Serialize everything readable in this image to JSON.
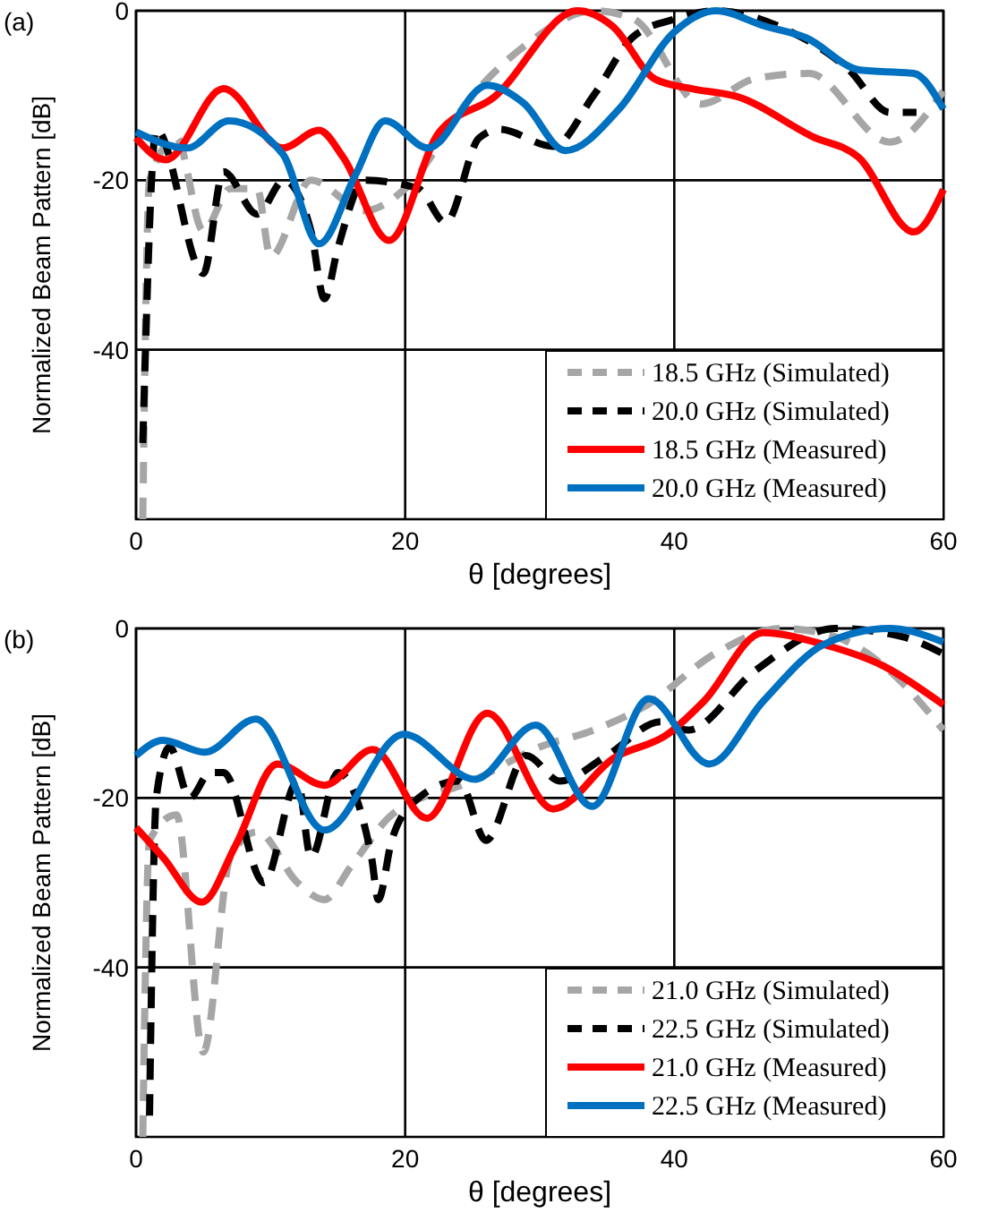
{
  "chart_data": [
    {
      "type": "line",
      "annotations": [
        "(a)"
      ],
      "xlabel": "θ [degrees]",
      "ylabel": "Normalized Beam Pattern [dB]",
      "xlim": [
        0,
        60
      ],
      "ylim": [
        -60,
        0
      ],
      "xticks": [
        0,
        20,
        40,
        60
      ],
      "yticks": [
        0,
        -20,
        -40
      ],
      "grid": true,
      "legend": "bottom right",
      "series": [
        {
          "name": "18.5 GHz (Simulated)",
          "color": "#a6a6a6",
          "line_style": "dashed",
          "x": [
            0.5,
            1,
            3,
            5,
            7,
            9,
            10,
            13,
            17,
            20,
            25,
            29,
            34,
            37,
            42,
            46,
            50,
            56,
            60
          ],
          "values": [
            -60,
            -20,
            -15,
            -26,
            -21,
            -21,
            -29,
            -20,
            -23.6,
            -21,
            -10,
            -4,
            0,
            -1,
            -11,
            -8,
            -7.4,
            -15.5,
            -9.5
          ]
        },
        {
          "name": "20.0 GHz (Simulated)",
          "color": "#000000",
          "line_style": "dashed",
          "x": [
            0.5,
            1.5,
            5,
            6.5,
            9,
            11,
            13,
            14,
            15,
            17,
            21,
            23,
            25.5,
            27,
            31,
            34,
            37,
            40,
            43,
            48,
            53,
            56,
            58
          ],
          "values": [
            -51,
            -14,
            -31,
            -19,
            -24,
            -20,
            -26,
            -34,
            -28,
            -20,
            -21,
            -25,
            -15,
            -14,
            -16,
            -10,
            -3,
            -1,
            0,
            -2,
            -7,
            -12,
            -12
          ]
        },
        {
          "name": "18.5 GHz (Measured)",
          "color": "#ff0000",
          "line_style": "solid",
          "x": [
            0,
            2.2,
            6.5,
            10.9,
            13.6,
            15.4,
            18.8,
            22.5,
            26.6,
            32.8,
            35.4,
            38.6,
            41.3,
            44.8,
            50.2,
            53.7,
            57.8,
            60
          ],
          "values": [
            -15,
            -17.6,
            -9.2,
            -16.2,
            -14.1,
            -17.3,
            -27.1,
            -14.4,
            -10.2,
            0,
            -1.8,
            -8.1,
            -9.2,
            -10.2,
            -14.8,
            -17.3,
            -26.1,
            -21.1
          ]
        },
        {
          "name": "20.0 GHz (Measured)",
          "color": "#0070c0",
          "line_style": "solid",
          "x": [
            0,
            3.8,
            6.9,
            10.9,
            13.6,
            16.3,
            18.5,
            21.7,
            26.1,
            28.8,
            31.9,
            35.9,
            40,
            43.1,
            46.7,
            49.8,
            53.8,
            57.8,
            60
          ],
          "values": [
            -14.3,
            -16.2,
            -13,
            -16.9,
            -27.5,
            -19.4,
            -13,
            -16.2,
            -8.8,
            -10.9,
            -16.5,
            -11.6,
            -2.5,
            0,
            -1.8,
            -3.2,
            -7,
            -7.4,
            -11.6
          ]
        }
      ]
    },
    {
      "type": "line",
      "annotations": [
        "(b)"
      ],
      "xlabel": "θ [degrees]",
      "ylabel": "Normalized Beam Pattern [dB]",
      "xlim": [
        0,
        60
      ],
      "ylim": [
        -60,
        0
      ],
      "xticks": [
        0,
        20,
        40,
        60
      ],
      "yticks": [
        0,
        -20,
        -40
      ],
      "grid": true,
      "legend": "bottom right",
      "series": [
        {
          "name": "21.0 GHz (Simulated)",
          "color": "#a6a6a6",
          "line_style": "dashed",
          "x": [
            0.5,
            1,
            3,
            5,
            7,
            9,
            12,
            14,
            16,
            19,
            25,
            30,
            34,
            38,
            43,
            48,
            52,
            56,
            60
          ],
          "values": [
            -60,
            -25,
            -22,
            -50,
            -27,
            -24,
            -30,
            -32,
            -28,
            -22,
            -18,
            -14,
            -12,
            -9,
            -3,
            0,
            -1,
            -5,
            -12
          ]
        },
        {
          "name": "22.5 GHz (Simulated)",
          "color": "#000000",
          "line_style": "dashed",
          "x": [
            1,
            1.5,
            2.5,
            4,
            5.5,
            6.5,
            9.5,
            12,
            13,
            15,
            17.5,
            18,
            19,
            21,
            24,
            26,
            29,
            31.5,
            35,
            39,
            41,
            46,
            52,
            57,
            60
          ],
          "values": [
            -57.5,
            -20,
            -14,
            -20,
            -17,
            -17,
            -30,
            -18,
            -27,
            -17,
            -27,
            -32,
            -25,
            -20,
            -18,
            -25,
            -15,
            -18,
            -15,
            -11,
            -12,
            -5,
            0,
            -1,
            -3
          ]
        },
        {
          "name": "21.0 GHz (Measured)",
          "color": "#ff0000",
          "line_style": "solid",
          "x": [
            0,
            2,
            4.9,
            7.4,
            10.5,
            14,
            17.6,
            21.6,
            26.1,
            31,
            35.5,
            39.5,
            42.2,
            46.6,
            51.1,
            55.5,
            60
          ],
          "values": [
            -23.5,
            -27,
            -32.3,
            -25.6,
            -16,
            -18.5,
            -14.3,
            -22.4,
            -10,
            -21.3,
            -15.3,
            -12.5,
            -8.6,
            -0.5,
            -1.9,
            -4.4,
            -9
          ]
        },
        {
          "name": "22.5 GHz (Measured)",
          "color": "#0070c0",
          "line_style": "solid",
          "x": [
            0,
            2,
            5.1,
            8.9,
            14,
            19.9,
            25.2,
            29.7,
            33.9,
            38.1,
            42.6,
            46.6,
            51.1,
            56,
            60
          ],
          "values": [
            -15,
            -13.2,
            -14.6,
            -10.7,
            -23.8,
            -12.5,
            -17.8,
            -11.4,
            -21,
            -8.3,
            -16,
            -8.6,
            -1.9,
            0,
            -1.6
          ]
        }
      ]
    }
  ]
}
